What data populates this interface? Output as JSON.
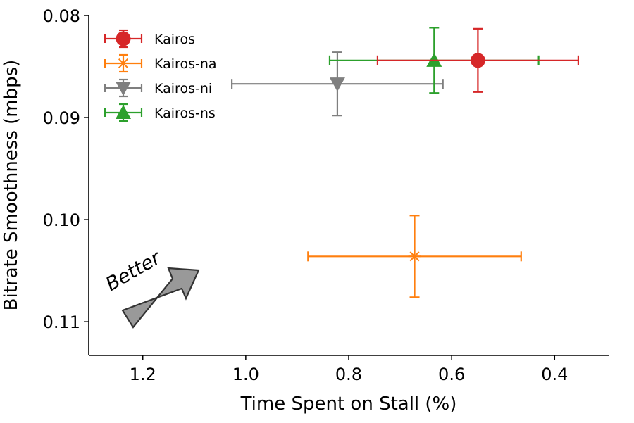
{
  "chart_data": {
    "type": "scatter",
    "title": "",
    "xlabel": "Time Spent on Stall (%)",
    "ylabel": "Bitrate Smoothness (mbps)",
    "xlim": [
      1.305,
      0.295
    ],
    "ylim": [
      0.1133,
      0.08
    ],
    "x_inverted": true,
    "y_inverted": true,
    "xticks": [
      1.2,
      1.0,
      0.8,
      0.6,
      0.4
    ],
    "xtick_labels": [
      "1.2",
      "1.0",
      "0.8",
      "0.6",
      "0.4"
    ],
    "yticks": [
      0.08,
      0.09,
      0.1,
      0.11
    ],
    "ytick_labels": [
      "0.08",
      "0.09",
      "0.10",
      "0.11"
    ],
    "legend_position": "top-left",
    "series": [
      {
        "name": "Kairos",
        "color": "#d62728",
        "marker": "circle",
        "x": 0.549,
        "y": 0.0844,
        "xerr": [
          0.195,
          0.195
        ],
        "yerr": [
          0.0031,
          0.0031
        ]
      },
      {
        "name": "Kairos-na",
        "color": "#ff7f0e",
        "marker": "x-cross",
        "x": 0.672,
        "y": 0.1036,
        "xerr": [
          0.207,
          0.207
        ],
        "yerr": [
          0.004,
          0.004
        ]
      },
      {
        "name": "Kairos-ni",
        "color": "#7f7f7f",
        "marker": "triangle-down",
        "x": 0.822,
        "y": 0.0867,
        "xerr": [
          0.205,
          0.205
        ],
        "yerr": [
          0.0031,
          0.0031
        ]
      },
      {
        "name": "Kairos-ns",
        "color": "#2ca02c",
        "marker": "triangle-up",
        "x": 0.634,
        "y": 0.0844,
        "xerr": [
          0.203,
          0.203
        ],
        "yerr": [
          0.0032,
          0.0032
        ]
      }
    ],
    "annotation": {
      "text": "Better",
      "icon": "arrow-up-right-icon",
      "color": "#999999"
    }
  }
}
